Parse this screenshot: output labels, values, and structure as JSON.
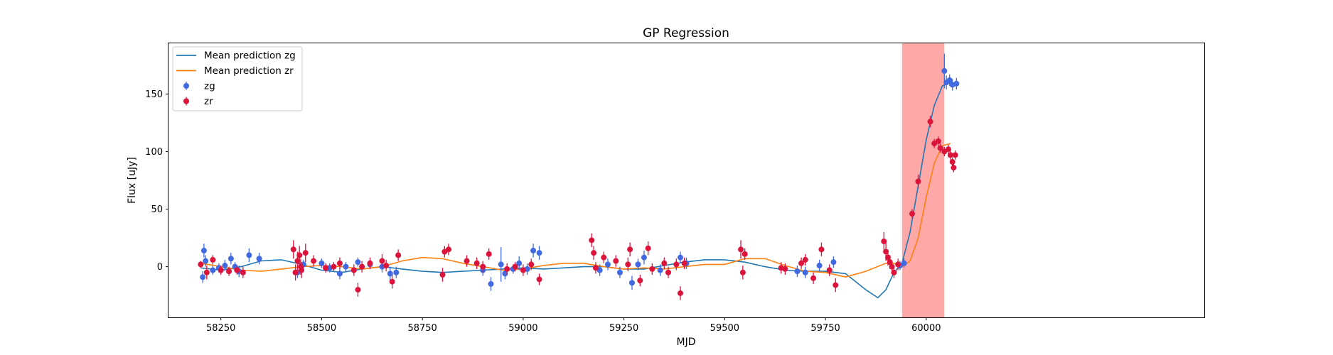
{
  "chart_data": {
    "type": "scatter",
    "title": "GP Regression",
    "xlabel": "MJD",
    "ylabel": "Flux [uJy]",
    "xlim": [
      58120,
      60690
    ],
    "ylim": [
      -44,
      194
    ],
    "xticks": [
      58250,
      58500,
      58750,
      59000,
      59250,
      59500,
      59750,
      60000
    ],
    "yticks": [
      0,
      50,
      100,
      150
    ],
    "legend_position": "upper-left",
    "highlight_band": {
      "x0": 59940,
      "x1": 60045,
      "color": "#ffa8a8"
    },
    "colors": {
      "zg": "#4169e1",
      "zr": "#dc143c",
      "mean_zg": "#1f77b4",
      "mean_zr": "#ff7f0e"
    },
    "legend": [
      {
        "label": "Mean prediction zg",
        "kind": "line",
        "color": "#1f77b4"
      },
      {
        "label": "Mean prediction zr",
        "kind": "line",
        "color": "#ff7f0e"
      },
      {
        "label": "zg",
        "kind": "errorbar",
        "color": "#4169e1"
      },
      {
        "label": "zr",
        "kind": "errorbar",
        "color": "#dc143c"
      }
    ],
    "series": [
      {
        "name": "Mean prediction zg",
        "kind": "line",
        "x": [
          58200,
          58250,
          58300,
          58350,
          58400,
          58450,
          58500,
          58550,
          58600,
          58650,
          58700,
          58750,
          58800,
          58850,
          58900,
          58950,
          59000,
          59050,
          59100,
          59150,
          59200,
          59250,
          59300,
          59350,
          59400,
          59450,
          59500,
          59550,
          59600,
          59650,
          59700,
          59750,
          59800,
          59850,
          59880,
          59900,
          59920,
          59940,
          59960,
          59980,
          60000,
          60020,
          60040,
          60060
        ],
        "y": [
          -1,
          -3,
          0,
          5,
          6,
          2,
          -3,
          -5,
          -2,
          0,
          -2,
          -4,
          -5,
          -4,
          -3,
          -2,
          -1,
          -2,
          -1,
          0,
          0,
          -2,
          -2,
          1,
          4,
          6,
          6,
          4,
          0,
          -3,
          -4,
          -4,
          -6,
          -20,
          -27,
          -20,
          -5,
          3,
          30,
          70,
          110,
          140,
          157,
          160
        ]
      },
      {
        "name": "Mean prediction zr",
        "kind": "line",
        "x": [
          58200,
          58250,
          58300,
          58350,
          58400,
          58450,
          58500,
          58550,
          58600,
          58650,
          58700,
          58750,
          58800,
          58850,
          58900,
          58950,
          59000,
          59050,
          59100,
          59150,
          59200,
          59250,
          59300,
          59350,
          59400,
          59450,
          59500,
          59550,
          59600,
          59650,
          59700,
          59750,
          59800,
          59850,
          59900,
          59920,
          59940,
          59960,
          59980,
          60000,
          60020,
          60040,
          60060
        ],
        "y": [
          3,
          0,
          -3,
          -4,
          -2,
          0,
          1,
          0,
          -2,
          0,
          5,
          8,
          7,
          3,
          0,
          -3,
          -2,
          1,
          3,
          3,
          0,
          -2,
          -1,
          -2,
          0,
          2,
          2,
          7,
          7,
          1,
          -4,
          -5,
          -9,
          -4,
          3,
          3,
          0,
          5,
          25,
          60,
          90,
          105,
          107
        ]
      },
      {
        "name": "zg",
        "kind": "errorbar",
        "points": [
          [
            58205,
            -9,
            5
          ],
          [
            58208,
            14,
            6
          ],
          [
            58212,
            5,
            5
          ],
          [
            58230,
            -3,
            4
          ],
          [
            58245,
            -1,
            4
          ],
          [
            58260,
            1,
            5
          ],
          [
            58275,
            7,
            5
          ],
          [
            58285,
            0,
            4
          ],
          [
            58295,
            -4,
            5
          ],
          [
            58320,
            10,
            6
          ],
          [
            58345,
            7,
            5
          ],
          [
            58440,
            -5,
            5
          ],
          [
            58455,
            2,
            4
          ],
          [
            58500,
            3,
            4
          ],
          [
            58520,
            -1,
            4
          ],
          [
            58545,
            -6,
            5
          ],
          [
            58560,
            0,
            4
          ],
          [
            58590,
            4,
            4
          ],
          [
            58620,
            2,
            4
          ],
          [
            58650,
            0,
            5
          ],
          [
            58670,
            -6,
            6
          ],
          [
            58685,
            -5,
            5
          ],
          [
            58900,
            -3,
            5
          ],
          [
            58920,
            -15,
            6
          ],
          [
            58945,
            2,
            15
          ],
          [
            58955,
            -6,
            5
          ],
          [
            58975,
            -2,
            4
          ],
          [
            58990,
            3,
            6
          ],
          [
            59010,
            -2,
            5
          ],
          [
            59025,
            14,
            6
          ],
          [
            59040,
            12,
            6
          ],
          [
            59190,
            -3,
            5
          ],
          [
            59210,
            2,
            5
          ],
          [
            59240,
            -5,
            5
          ],
          [
            59270,
            -14,
            6
          ],
          [
            59285,
            2,
            5
          ],
          [
            59300,
            8,
            6
          ],
          [
            59340,
            -3,
            5
          ],
          [
            59390,
            8,
            5
          ],
          [
            59405,
            3,
            5
          ],
          [
            59680,
            -4,
            5
          ],
          [
            59700,
            -5,
            5
          ],
          [
            59735,
            1,
            5
          ],
          [
            59760,
            -3,
            5
          ],
          [
            59770,
            4,
            5
          ],
          [
            59935,
            1,
            4
          ],
          [
            59945,
            3,
            4
          ],
          [
            60045,
            170,
            15
          ],
          [
            60050,
            160,
            6
          ],
          [
            60058,
            162,
            5
          ],
          [
            60065,
            158,
            5
          ],
          [
            60075,
            159,
            5
          ]
        ]
      },
      {
        "name": "zr",
        "kind": "errorbar",
        "points": [
          [
            58200,
            2,
            3
          ],
          [
            58215,
            -5,
            6
          ],
          [
            58230,
            6,
            4
          ],
          [
            58250,
            -3,
            4
          ],
          [
            58270,
            -4,
            4
          ],
          [
            58290,
            -3,
            4
          ],
          [
            58305,
            -5,
            5
          ],
          [
            58430,
            15,
            8
          ],
          [
            58435,
            -5,
            7
          ],
          [
            58440,
            5,
            8
          ],
          [
            58445,
            10,
            8
          ],
          [
            58448,
            0,
            7
          ],
          [
            58450,
            -3,
            7
          ],
          [
            58460,
            12,
            8
          ],
          [
            58480,
            5,
            5
          ],
          [
            58510,
            -1,
            4
          ],
          [
            58530,
            0,
            4
          ],
          [
            58545,
            3,
            5
          ],
          [
            58580,
            -3,
            5
          ],
          [
            58590,
            -20,
            6
          ],
          [
            58600,
            0,
            5
          ],
          [
            58620,
            3,
            5
          ],
          [
            58650,
            5,
            6
          ],
          [
            58660,
            1,
            5
          ],
          [
            58675,
            -13,
            6
          ],
          [
            58690,
            10,
            5
          ],
          [
            58800,
            -7,
            6
          ],
          [
            58805,
            13,
            5
          ],
          [
            58815,
            15,
            5
          ],
          [
            58860,
            5,
            5
          ],
          [
            58885,
            3,
            5
          ],
          [
            58900,
            0,
            5
          ],
          [
            58915,
            11,
            5
          ],
          [
            58960,
            -2,
            5
          ],
          [
            58980,
            0,
            4
          ],
          [
            59000,
            -3,
            5
          ],
          [
            59020,
            2,
            5
          ],
          [
            59040,
            -11,
            5
          ],
          [
            59170,
            23,
            6
          ],
          [
            59175,
            12,
            6
          ],
          [
            59180,
            -1,
            5
          ],
          [
            59200,
            8,
            5
          ],
          [
            59230,
            5,
            5
          ],
          [
            59260,
            2,
            6
          ],
          [
            59265,
            15,
            6
          ],
          [
            59290,
            -12,
            5
          ],
          [
            59310,
            16,
            6
          ],
          [
            59320,
            -2,
            5
          ],
          [
            59350,
            3,
            5
          ],
          [
            59360,
            -5,
            5
          ],
          [
            59380,
            2,
            5
          ],
          [
            59390,
            -23,
            6
          ],
          [
            59400,
            3,
            5
          ],
          [
            59540,
            15,
            8
          ],
          [
            59545,
            -5,
            6
          ],
          [
            59550,
            11,
            5
          ],
          [
            59640,
            -1,
            5
          ],
          [
            59650,
            -2,
            5
          ],
          [
            59690,
            3,
            5
          ],
          [
            59700,
            6,
            5
          ],
          [
            59720,
            -10,
            5
          ],
          [
            59740,
            15,
            6
          ],
          [
            59760,
            -3,
            5
          ],
          [
            59775,
            -16,
            6
          ],
          [
            59895,
            22,
            8
          ],
          [
            59900,
            13,
            8
          ],
          [
            59905,
            8,
            7
          ],
          [
            59910,
            4,
            6
          ],
          [
            59915,
            0,
            5
          ],
          [
            59920,
            -5,
            5
          ],
          [
            59930,
            2,
            5
          ],
          [
            59965,
            46,
            4
          ],
          [
            59980,
            74,
            6
          ],
          [
            60010,
            126,
            5
          ],
          [
            60020,
            107,
            4
          ],
          [
            60030,
            109,
            4
          ],
          [
            60035,
            103,
            4
          ],
          [
            60045,
            100,
            4
          ],
          [
            60055,
            102,
            4
          ],
          [
            60060,
            97,
            4
          ],
          [
            60065,
            91,
            4
          ],
          [
            60068,
            86,
            4
          ],
          [
            60072,
            97,
            4
          ]
        ]
      }
    ]
  }
}
